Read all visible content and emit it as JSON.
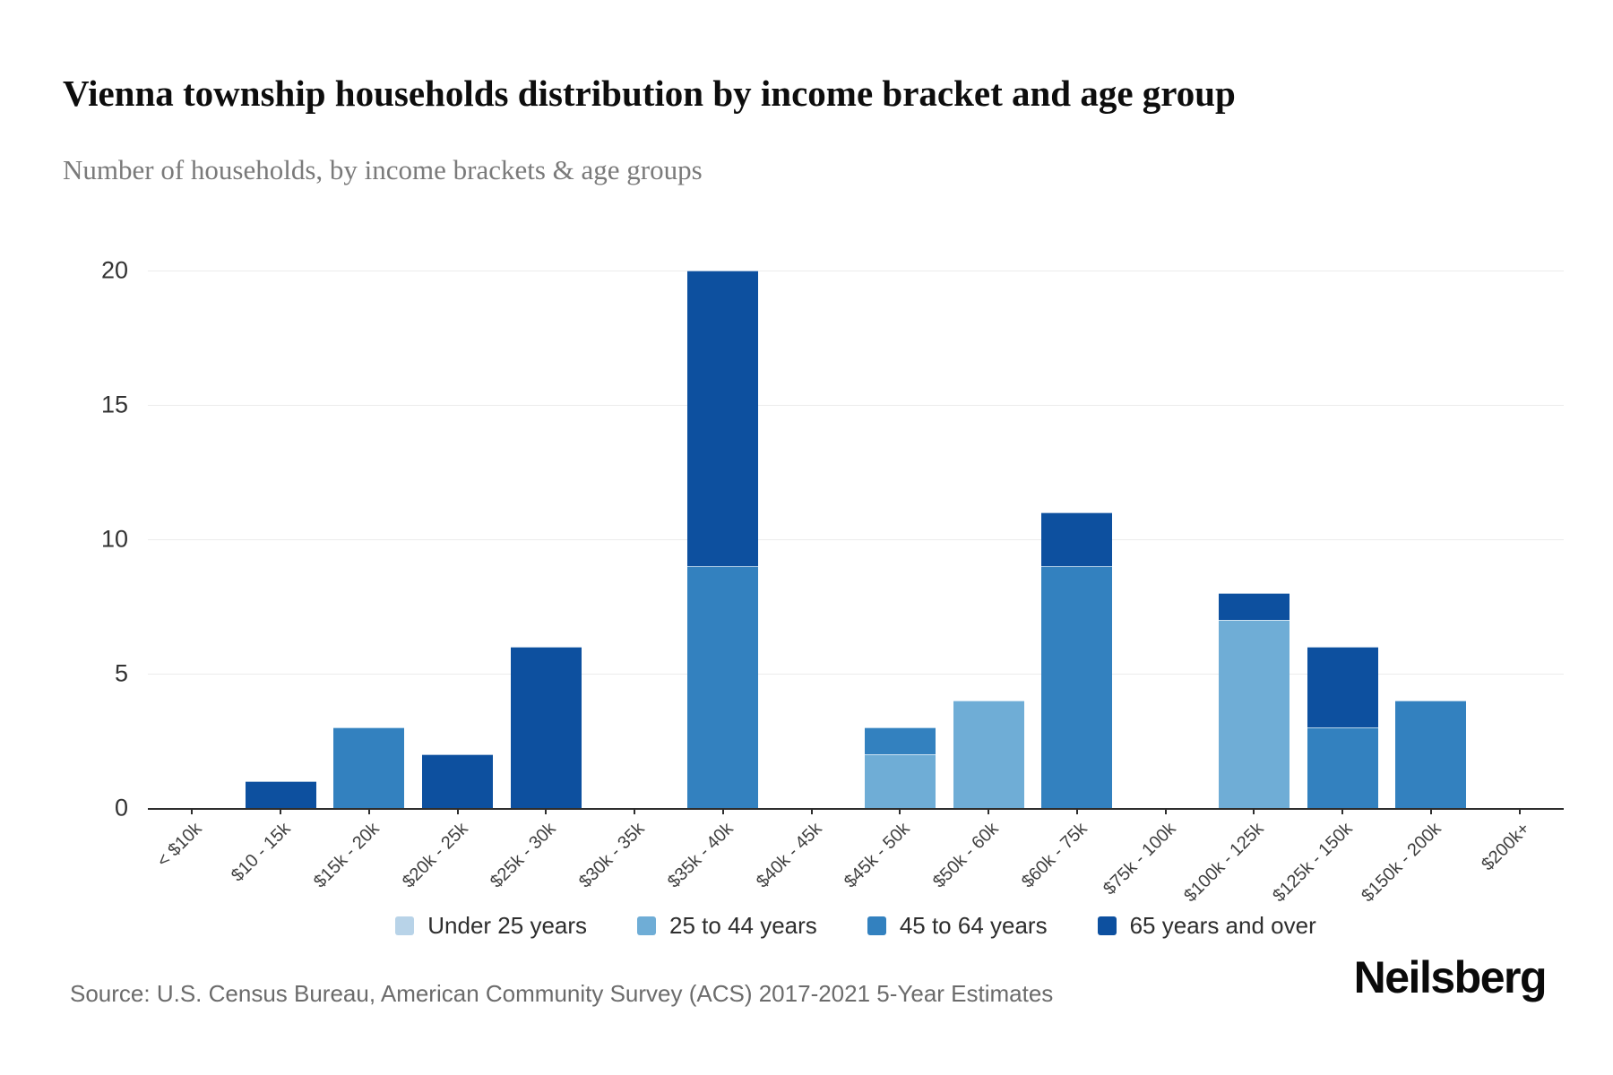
{
  "page": {
    "title": "Vienna township households distribution by income bracket and age group",
    "subtitle": "Number of households, by income brackets & age groups",
    "source": "Source: U.S. Census Bureau, American Community Survey (ACS) 2017-2021 5-Year Estimates",
    "brand": "Neilsberg"
  },
  "colors": {
    "axis": "#2e2e2e",
    "gridline": "#ececec",
    "under_25": "#b8d3e8",
    "age_25_44": "#6fadd6",
    "age_45_64": "#3381bf",
    "age_65_plus": "#0d509f"
  },
  "chart_data": {
    "type": "bar",
    "stacked": true,
    "title": "Vienna township households distribution by income bracket and age group",
    "subtitle": "Number of households, by income brackets & age groups",
    "xlabel": "",
    "ylabel": "",
    "ylim": [
      0,
      20
    ],
    "yticks": [
      0,
      5,
      10,
      15,
      20
    ],
    "grid": "horizontal",
    "legend_position": "bottom",
    "categories": [
      "< $10k",
      "$10 - 15k",
      "$15k - 20k",
      "$20k - 25k",
      "$25k - 30k",
      "$30k - 35k",
      "$35k - 40k",
      "$40k - 45k",
      "$45k - 50k",
      "$50k - 60k",
      "$60k - 75k",
      "$75k - 100k",
      "$100k - 125k",
      "$125k - 150k",
      "$150k - 200k",
      "$200k+"
    ],
    "series": [
      {
        "name": "Under 25 years",
        "color": "#b8d3e8",
        "values": [
          0,
          0,
          0,
          0,
          0,
          0,
          0,
          0,
          0,
          0,
          0,
          0,
          0,
          0,
          0,
          0
        ]
      },
      {
        "name": "25 to 44 years",
        "color": "#6fadd6",
        "values": [
          0,
          0,
          0,
          0,
          0,
          0,
          0,
          0,
          2,
          4,
          0,
          0,
          7,
          0,
          0,
          0
        ]
      },
      {
        "name": "45 to 64 years",
        "color": "#3381bf",
        "values": [
          0,
          0,
          3,
          0,
          0,
          0,
          9,
          0,
          1,
          0,
          9,
          0,
          0,
          3,
          4,
          0
        ]
      },
      {
        "name": "65 years and over",
        "color": "#0d509f",
        "values": [
          0,
          1,
          0,
          2,
          6,
          0,
          11,
          0,
          0,
          0,
          2,
          0,
          1,
          3,
          0,
          0
        ]
      }
    ]
  }
}
